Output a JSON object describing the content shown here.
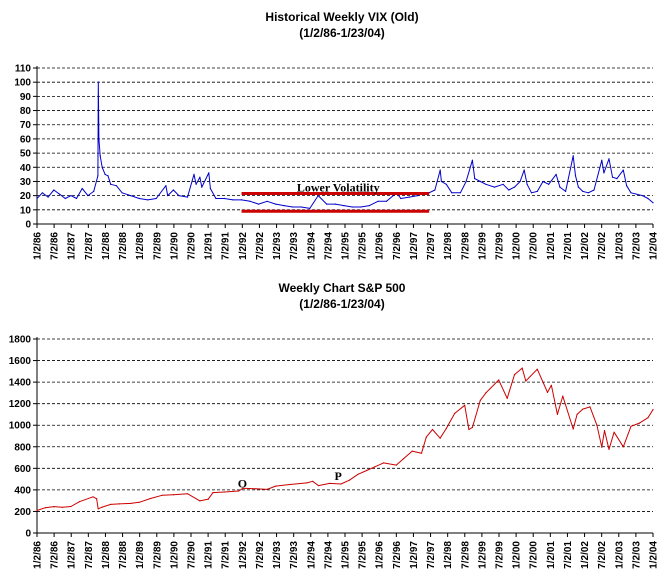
{
  "chart_data": [
    {
      "type": "line",
      "title": "Historical Weekly VIX (Old)",
      "subtitle": "(1/2/86-1/23/04)",
      "xlabel": "",
      "ylabel": "",
      "x_start": "1986-01-02",
      "x_end": "2004-01-23",
      "ylim": [
        0,
        110
      ],
      "yticks": [
        "0",
        "10",
        "20",
        "30",
        "40",
        "50",
        "60",
        "70",
        "80",
        "90",
        "100",
        "110"
      ],
      "xticks": [
        "1/2/86",
        "7/2/86",
        "1/2/87",
        "7/2/87",
        "1/2/88",
        "7/2/88",
        "1/2/89",
        "7/2/89",
        "1/2/90",
        "7/2/90",
        "1/2/91",
        "7/2/91",
        "1/2/92",
        "7/2/92",
        "1/2/93",
        "7/2/93",
        "1/2/94",
        "7/2/94",
        "1/2/95",
        "7/2/95",
        "1/2/96",
        "7/2/96",
        "1/2/97",
        "7/2/97",
        "1/2/98",
        "7/2/98",
        "1/2/99",
        "7/2/99",
        "1/2/00",
        "7/2/00",
        "1/2/01",
        "7/2/01",
        "1/2/02",
        "7/2/02",
        "1/2/03",
        "7/2/03",
        "1/2/04"
      ],
      "grid": "horizontal dashed",
      "series": [
        {
          "color": "#0000cc",
          "points": [
            [
              "1986-01-02",
              18
            ],
            [
              "1986-03-01",
              22
            ],
            [
              "1986-05-01",
              19
            ],
            [
              "1986-07-01",
              24
            ],
            [
              "1986-09-01",
              21
            ],
            [
              "1986-11-01",
              18
            ],
            [
              "1987-01-01",
              20
            ],
            [
              "1987-03-01",
              18
            ],
            [
              "1987-05-01",
              25
            ],
            [
              "1987-07-01",
              20
            ],
            [
              "1987-09-01",
              23
            ],
            [
              "1987-10-16",
              34
            ],
            [
              "1987-10-20",
              100
            ],
            [
              "1987-10-27",
              60
            ],
            [
              "1987-11-10",
              48
            ],
            [
              "1987-12-01",
              40
            ],
            [
              "1988-01-01",
              35
            ],
            [
              "1988-02-01",
              34
            ],
            [
              "1988-03-01",
              28
            ],
            [
              "1988-05-01",
              27
            ],
            [
              "1988-07-01",
              22
            ],
            [
              "1988-10-01",
              20
            ],
            [
              "1989-01-01",
              18
            ],
            [
              "1989-04-01",
              17
            ],
            [
              "1989-07-01",
              18
            ],
            [
              "1989-10-13",
              27
            ],
            [
              "1989-11-01",
              20
            ],
            [
              "1990-01-01",
              24
            ],
            [
              "1990-03-01",
              20
            ],
            [
              "1990-06-01",
              19
            ],
            [
              "1990-08-10",
              35
            ],
            [
              "1990-09-01",
              28
            ],
            [
              "1990-10-12",
              33
            ],
            [
              "1990-11-01",
              26
            ],
            [
              "1991-01-15",
              36
            ],
            [
              "1991-02-01",
              25
            ],
            [
              "1991-04-01",
              18
            ],
            [
              "1991-07-01",
              18
            ],
            [
              "1991-10-01",
              17
            ],
            [
              "1992-01-01",
              17
            ],
            [
              "1992-04-01",
              16
            ],
            [
              "1992-07-01",
              14
            ],
            [
              "1992-10-01",
              16
            ],
            [
              "1993-01-01",
              14
            ],
            [
              "1993-04-01",
              13
            ],
            [
              "1993-07-01",
              12
            ],
            [
              "1993-10-01",
              12
            ],
            [
              "1994-01-01",
              11
            ],
            [
              "1994-04-01",
              20
            ],
            [
              "1994-07-01",
              14
            ],
            [
              "1994-10-01",
              14
            ],
            [
              "1995-01-01",
              13
            ],
            [
              "1995-04-01",
              12
            ],
            [
              "1995-07-01",
              12
            ],
            [
              "1995-10-01",
              13
            ],
            [
              "1996-01-01",
              16
            ],
            [
              "1996-04-01",
              16
            ],
            [
              "1996-07-19",
              22
            ],
            [
              "1996-09-01",
              18
            ],
            [
              "1996-12-01",
              19
            ],
            [
              "1997-03-01",
              20
            ],
            [
              "1997-05-01",
              22
            ],
            [
              "1997-07-01",
              22
            ],
            [
              "1997-09-01",
              24
            ],
            [
              "1997-10-28",
              38
            ],
            [
              "1997-11-10",
              30
            ],
            [
              "1998-01-01",
              28
            ],
            [
              "1998-03-01",
              22
            ],
            [
              "1998-06-01",
              22
            ],
            [
              "1998-08-01",
              30
            ],
            [
              "1998-10-08",
              45
            ],
            [
              "1998-11-01",
              32
            ],
            [
              "1999-01-01",
              30
            ],
            [
              "1999-03-01",
              28
            ],
            [
              "1999-06-01",
              26
            ],
            [
              "1999-09-01",
              28
            ],
            [
              "1999-11-01",
              24
            ],
            [
              "2000-01-01",
              26
            ],
            [
              "2000-03-01",
              30
            ],
            [
              "2000-04-14",
              38
            ],
            [
              "2000-05-15",
              28
            ],
            [
              "2000-07-01",
              22
            ],
            [
              "2000-09-01",
              23
            ],
            [
              "2000-11-01",
              30
            ],
            [
              "2001-01-01",
              28
            ],
            [
              "2001-03-22",
              35
            ],
            [
              "2001-05-01",
              26
            ],
            [
              "2001-07-01",
              23
            ],
            [
              "2001-09-21",
              48
            ],
            [
              "2001-10-15",
              34
            ],
            [
              "2001-11-15",
              26
            ],
            [
              "2002-01-01",
              23
            ],
            [
              "2002-03-01",
              22
            ],
            [
              "2002-05-01",
              24
            ],
            [
              "2002-07-24",
              45
            ],
            [
              "2002-08-15",
              36
            ],
            [
              "2002-10-09",
              46
            ],
            [
              "2002-11-15",
              33
            ],
            [
              "2003-01-01",
              32
            ],
            [
              "2003-03-11",
              38
            ],
            [
              "2003-04-15",
              27
            ],
            [
              "2003-06-01",
              22
            ],
            [
              "2003-08-01",
              21
            ],
            [
              "2003-10-01",
              20
            ],
            [
              "2003-12-01",
              18
            ],
            [
              "2004-01-23",
              15
            ]
          ]
        }
      ],
      "annotations": [
        {
          "text": "Lower Volatility",
          "x": "1994-11-01",
          "y": 23
        }
      ],
      "reference_lines": [
        {
          "color": "#cc0000",
          "from": [
            "1992-01-01",
            21.5
          ],
          "to": [
            "1997-07-01",
            21.5
          ]
        },
        {
          "color": "#cc0000",
          "from": [
            "1992-01-01",
            9
          ],
          "to": [
            "1997-07-01",
            9
          ]
        }
      ]
    },
    {
      "type": "line",
      "title": "Weekly Chart S&P 500",
      "subtitle": "(1/2/86-1/23/04)",
      "xlabel": "",
      "ylabel": "",
      "x_start": "1986-01-02",
      "x_end": "2004-01-23",
      "ylim": [
        0,
        1800
      ],
      "yticks": [
        "0",
        "200",
        "400",
        "600",
        "800",
        "1000",
        "1200",
        "1400",
        "1600",
        "1800"
      ],
      "xticks": [
        "1/2/86",
        "7/2/86",
        "1/2/87",
        "7/2/87",
        "1/2/88",
        "7/2/88",
        "1/2/89",
        "7/2/89",
        "1/2/90",
        "7/2/90",
        "1/2/91",
        "7/2/91",
        "1/2/92",
        "7/2/92",
        "1/2/93",
        "7/2/93",
        "1/2/94",
        "7/2/94",
        "1/2/95",
        "7/2/95",
        "1/2/96",
        "7/2/96",
        "1/2/97",
        "7/2/97",
        "1/2/98",
        "7/2/98",
        "1/2/99",
        "7/2/99",
        "1/2/00",
        "7/2/00",
        "1/2/01",
        "7/2/01",
        "1/2/02",
        "7/2/02",
        "1/2/03",
        "7/2/03",
        "1/2/04"
      ],
      "grid": "horizontal dashed",
      "series": [
        {
          "color": "#cc0000",
          "points": [
            [
              "1986-01-02",
              209
            ],
            [
              "1986-04-01",
              235
            ],
            [
              "1986-07-01",
              245
            ],
            [
              "1986-10-01",
              238
            ],
            [
              "1987-01-01",
              246
            ],
            [
              "1987-04-01",
              290
            ],
            [
              "1987-08-25",
              336
            ],
            [
              "1987-10-02",
              318
            ],
            [
              "1987-10-19",
              225
            ],
            [
              "1987-12-01",
              240
            ],
            [
              "1988-03-01",
              265
            ],
            [
              "1988-06-01",
              270
            ],
            [
              "1988-10-01",
              275
            ],
            [
              "1989-01-01",
              285
            ],
            [
              "1989-05-01",
              320
            ],
            [
              "1989-09-01",
              350
            ],
            [
              "1990-01-01",
              355
            ],
            [
              "1990-06-01",
              365
            ],
            [
              "1990-10-12",
              298
            ],
            [
              "1991-01-10",
              315
            ],
            [
              "1991-03-01",
              375
            ],
            [
              "1991-07-01",
              380
            ],
            [
              "1991-12-01",
              390
            ],
            [
              "1992-01-15",
              415
            ],
            [
              "1992-06-01",
              410
            ],
            [
              "1992-10-01",
              405
            ],
            [
              "1993-01-01",
              435
            ],
            [
              "1993-06-01",
              450
            ],
            [
              "1993-12-01",
              465
            ],
            [
              "1994-02-01",
              480
            ],
            [
              "1994-04-04",
              440
            ],
            [
              "1994-08-01",
              460
            ],
            [
              "1994-12-01",
              455
            ],
            [
              "1995-03-01",
              490
            ],
            [
              "1995-06-01",
              545
            ],
            [
              "1995-09-01",
              580
            ],
            [
              "1995-12-01",
              615
            ],
            [
              "1996-03-01",
              650
            ],
            [
              "1996-07-15",
              630
            ],
            [
              "1996-10-01",
              690
            ],
            [
              "1997-01-01",
              760
            ],
            [
              "1997-04-11",
              740
            ],
            [
              "1997-06-01",
              890
            ],
            [
              "1997-08-06",
              960
            ],
            [
              "1997-10-27",
              880
            ],
            [
              "1998-01-01",
              970
            ],
            [
              "1998-04-01",
              1110
            ],
            [
              "1998-07-17",
              1185
            ],
            [
              "1998-08-31",
              960
            ],
            [
              "1998-10-08",
              980
            ],
            [
              "1998-12-31",
              1230
            ],
            [
              "1999-03-01",
              1300
            ],
            [
              "1999-07-16",
              1420
            ],
            [
              "1999-10-15",
              1250
            ],
            [
              "2000-01-01",
              1470
            ],
            [
              "2000-03-24",
              1530
            ],
            [
              "2000-05-01",
              1410
            ],
            [
              "2000-09-01",
              1520
            ],
            [
              "2000-12-20",
              1305
            ],
            [
              "2001-01-30",
              1370
            ],
            [
              "2001-04-04",
              1100
            ],
            [
              "2001-06-01",
              1270
            ],
            [
              "2001-09-21",
              965
            ],
            [
              "2001-11-01",
              1100
            ],
            [
              "2002-01-01",
              1150
            ],
            [
              "2002-03-19",
              1170
            ],
            [
              "2002-06-01",
              1000
            ],
            [
              "2002-07-24",
              797
            ],
            [
              "2002-08-22",
              950
            ],
            [
              "2002-10-09",
              776
            ],
            [
              "2002-12-02",
              935
            ],
            [
              "2003-03-11",
              800
            ],
            [
              "2003-06-01",
              990
            ],
            [
              "2003-09-01",
              1020
            ],
            [
              "2003-12-01",
              1070
            ],
            [
              "2004-01-23",
              1145
            ]
          ]
        }
      ],
      "annotations": [
        {
          "text": "O",
          "x": "1992-01-10",
          "y": 420
        },
        {
          "text": "P",
          "x": "1994-11-01",
          "y": 490
        }
      ],
      "reference_lines": []
    }
  ]
}
